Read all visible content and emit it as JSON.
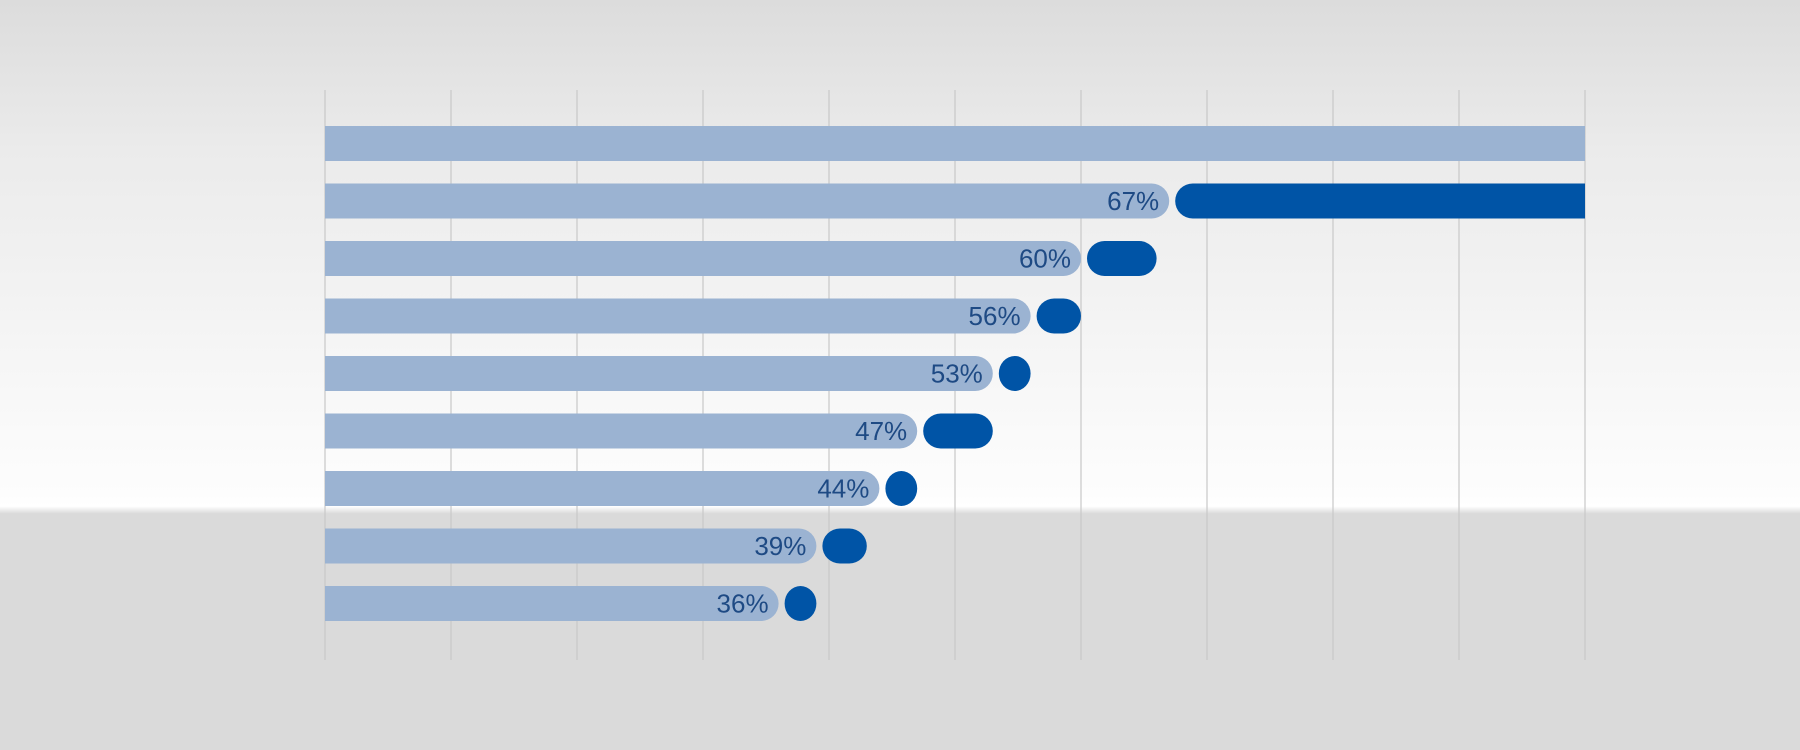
{
  "chart_data": {
    "type": "bar",
    "orientation": "horizontal",
    "stacked": true,
    "title": "",
    "xlabel": "",
    "ylabel": "",
    "xlim": [
      0,
      100
    ],
    "grid": true,
    "legend": "none",
    "colors": {
      "base": "#9bb3d2",
      "increment": "#0054a6",
      "label": "#1e4a84",
      "grid": "#c8c8c8"
    },
    "rows": [
      {
        "base": 100,
        "increment": 0,
        "label": ""
      },
      {
        "base": 67,
        "increment": 33,
        "label": "67%"
      },
      {
        "base": 60,
        "increment": 6,
        "label": "60%"
      },
      {
        "base": 56,
        "increment": 4,
        "label": "56%"
      },
      {
        "base": 53,
        "increment": 3,
        "label": "53%"
      },
      {
        "base": 47,
        "increment": 6,
        "label": "47%"
      },
      {
        "base": 44,
        "increment": 3,
        "label": "44%"
      },
      {
        "base": 39,
        "increment": 4,
        "label": "39%"
      },
      {
        "base": 36,
        "increment": 3,
        "label": "36%"
      }
    ]
  }
}
